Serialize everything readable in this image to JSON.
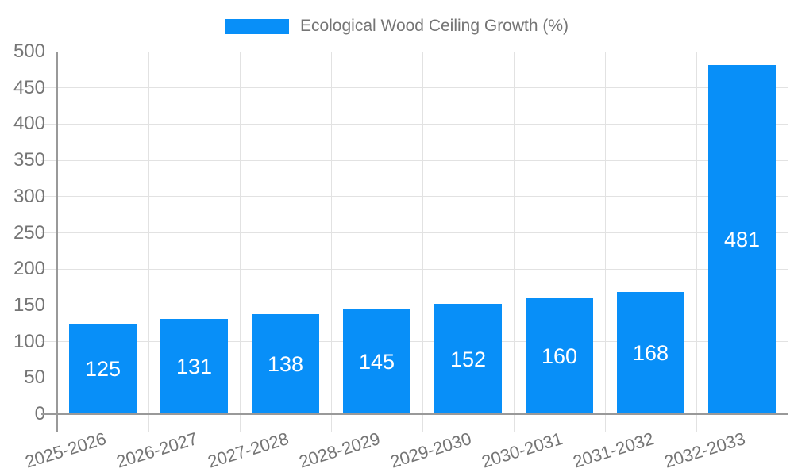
{
  "legend": {
    "label": "Ecological Wood Ceiling Growth (%)"
  },
  "chart_data": {
    "type": "bar",
    "title": "Ecological Wood Ceiling Growth (%)",
    "series_name": "Ecological Wood Ceiling Growth (%)",
    "categories": [
      "2025-2026",
      "2026-2027",
      "2027-2028",
      "2028-2029",
      "2029-2030",
      "2030-2031",
      "2031-2032",
      "2032-2033"
    ],
    "values": [
      125,
      131,
      138,
      145,
      152,
      160,
      168,
      481
    ],
    "xlabel": "",
    "ylabel": "",
    "ylim": [
      0,
      500
    ],
    "ytick_step": 50,
    "yticks": [
      0,
      50,
      100,
      150,
      200,
      250,
      300,
      350,
      400,
      450,
      500
    ],
    "grid": true,
    "legend_position": "top",
    "bar_value_labels_shown": true,
    "x_label_rotation_deg": -17,
    "colors": {
      "bar": "#088ff8",
      "axis_line": "#999999",
      "gridline": "#e2e2e2",
      "axis_text": "#757575",
      "bar_label_text": "#ffffff",
      "background": "#ffffff"
    }
  }
}
